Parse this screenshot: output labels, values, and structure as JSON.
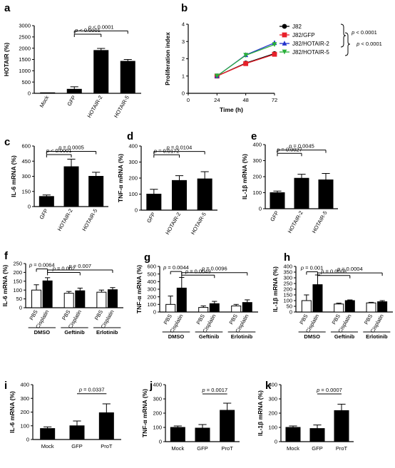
{
  "panels": [
    {
      "id": "a",
      "label": "a",
      "type": "bar",
      "ylabel": "HOTAIR (%)",
      "ylim": [
        0,
        3000
      ],
      "yticks": [
        0,
        500,
        1000,
        1500,
        2000,
        2500,
        3000
      ],
      "categories": [
        "Mock",
        "GFP",
        "HOTAIR-2",
        "HOTAIR-5"
      ],
      "values": [
        25,
        180,
        1900,
        1420
      ],
      "errors": [
        0,
        110,
        90,
        80
      ],
      "fills": [
        "#000",
        "#000",
        "#000",
        "#000"
      ],
      "brackets": [
        {
          "from": 1,
          "to": 3,
          "level": 0.96,
          "text": "p < 0.0001",
          "drop": true
        },
        {
          "from": 1,
          "to": 2,
          "level": 0.82,
          "text": "p < 0.0001",
          "drop": true
        }
      ]
    },
    {
      "id": "b",
      "label": "b",
      "type": "line",
      "ylabel": "Proliferation index",
      "xlabel": "Time (h)",
      "ylim": [
        0,
        4
      ],
      "yticks": [
        0,
        1,
        2,
        3,
        4
      ],
      "xlim": [
        0,
        72
      ],
      "xticks": [
        0,
        24,
        48,
        72
      ],
      "series": [
        {
          "name": "J82",
          "color": "#000000",
          "marker": "circle",
          "x": [
            24,
            48,
            72
          ],
          "y": [
            1.0,
            1.75,
            2.3
          ]
        },
        {
          "name": "J82/GFP",
          "color": "#e8202a",
          "marker": "square",
          "x": [
            24,
            48,
            72
          ],
          "y": [
            1.0,
            1.72,
            2.26
          ]
        },
        {
          "name": "J82/HOTAIR-2",
          "color": "#2233cc",
          "marker": "triangle-up",
          "x": [
            24,
            48,
            72
          ],
          "y": [
            1.0,
            2.22,
            2.92
          ]
        },
        {
          "name": "J82/HOTAIR-5",
          "color": "#2ab03a",
          "marker": "triangle-down",
          "x": [
            24,
            48,
            72
          ],
          "y": [
            1.0,
            2.2,
            2.82
          ]
        }
      ],
      "pvalues": [
        "p < 0.0001",
        "p < 0.0001"
      ]
    },
    {
      "id": "c",
      "label": "c",
      "type": "bar",
      "ylabel": "IL-6 mRNA (%)",
      "ylim": [
        0,
        600
      ],
      "yticks": [
        0,
        150,
        300,
        450,
        600
      ],
      "categories": [
        "GFP",
        "HOTAIR-2",
        "HOTAIR-5"
      ],
      "values": [
        100,
        395,
        300
      ],
      "errors": [
        15,
        75,
        40
      ],
      "fills": [
        "#000",
        "#000",
        "#000"
      ],
      "brackets": [
        {
          "from": 0,
          "to": 2,
          "level": 0.95,
          "text": "p = 0.0005",
          "drop": true
        },
        {
          "from": 0,
          "to": 1,
          "level": 0.8,
          "text": "p < 0.0001",
          "drop": true
        }
      ]
    },
    {
      "id": "d",
      "label": "d",
      "type": "bar",
      "ylabel": "TNF-α mRNA (%)",
      "ylim": [
        0,
        400
      ],
      "yticks": [
        0,
        100,
        200,
        300,
        400
      ],
      "categories": [
        "GFP",
        "HOTAIR-2",
        "HOTAIR-5"
      ],
      "values": [
        100,
        185,
        195
      ],
      "errors": [
        30,
        30,
        45
      ],
      "fills": [
        "#000",
        "#000",
        "#000"
      ],
      "brackets": [
        {
          "from": 0,
          "to": 2,
          "level": 0.95,
          "text": "p = 0.0104",
          "drop": true
        },
        {
          "from": 0,
          "to": 1,
          "level": 0.8,
          "text": "p = 0.0172",
          "drop": true
        }
      ]
    },
    {
      "id": "e",
      "label": "e",
      "type": "bar",
      "ylabel": "IL-1β mRNA (%)",
      "ylim": [
        0,
        400
      ],
      "yticks": [
        0,
        100,
        200,
        300,
        400
      ],
      "categories": [
        "GFP",
        "HOTAIR-2",
        "HOTAIR-5"
      ],
      "values": [
        100,
        190,
        180
      ],
      "errors": [
        10,
        25,
        40
      ],
      "fills": [
        "#000",
        "#000",
        "#000"
      ],
      "brackets": [
        {
          "from": 0,
          "to": 2,
          "level": 0.95,
          "text": "p = 0.0045",
          "drop": true
        },
        {
          "from": 0,
          "to": 1,
          "level": 0.8,
          "text": "p = 0.0027",
          "drop": true
        }
      ]
    },
    {
      "id": "f",
      "label": "f",
      "type": "bar",
      "ylabel": "IL-6 mRNA (%)",
      "ylim": [
        0,
        250
      ],
      "yticks": [
        0,
        50,
        100,
        150,
        200,
        250
      ],
      "categories": [
        "PBS",
        "Cisplatin",
        "PBS",
        "Cisplatin",
        "PBS",
        "Cisplatin"
      ],
      "groups": [
        "DMSO",
        "Geftinib",
        "Erlotinib"
      ],
      "values": [
        100,
        152,
        82,
        96,
        88,
        102
      ],
      "errors": [
        30,
        18,
        10,
        15,
        12,
        12
      ],
      "fills": [
        "#fff",
        "#000",
        "#fff",
        "#000",
        "#fff",
        "#000"
      ],
      "brackets": [
        {
          "from": 0,
          "to": 1,
          "level": 0.93,
          "text": "p = 0.0064",
          "drop": true
        },
        {
          "from": 1,
          "to": 5,
          "level": 0.86,
          "text": "p = 0.007",
          "drop": true
        },
        {
          "from": 1,
          "to": 3,
          "level": 0.7,
          "text": "p = 0.002",
          "drop": true
        }
      ]
    },
    {
      "id": "g",
      "label": "g",
      "type": "bar",
      "ylabel": "TNF-α mRNA (%)",
      "ylim": [
        0,
        600
      ],
      "yticks": [
        0,
        100,
        200,
        300,
        400,
        500,
        600
      ],
      "categories": [
        "PBS",
        "Cisplatin",
        "PBS",
        "Cisplatin",
        "PBS",
        "Cisplatin"
      ],
      "groups": [
        "DMSO",
        "Geftinib",
        "Erlotinib"
      ],
      "values": [
        100,
        315,
        60,
        110,
        80,
        125
      ],
      "errors": [
        110,
        140,
        20,
        30,
        20,
        35
      ],
      "fills": [
        "#fff",
        "#000",
        "#fff",
        "#000",
        "#fff",
        "#000"
      ],
      "brackets": [
        {
          "from": 0,
          "to": 1,
          "level": 0.95,
          "text": "p = 0.0044",
          "drop": true
        },
        {
          "from": 1,
          "to": 5,
          "level": 0.88,
          "text": "p = 0.0096",
          "drop": true
        },
        {
          "from": 1,
          "to": 3,
          "level": 0.72,
          "text": "p = 0.0049",
          "drop": true
        }
      ]
    },
    {
      "id": "h",
      "label": "h",
      "type": "bar",
      "ylabel": "IL-1β mRNA (%)",
      "ylim": [
        0,
        400
      ],
      "yticks": [
        0,
        50,
        100,
        150,
        200,
        250,
        300,
        350,
        400
      ],
      "categories": [
        "PBS",
        "Cisplatin",
        "PBS",
        "Cisplatin",
        "PBS",
        "Cisplatin"
      ],
      "groups": [
        "DMSO",
        "Geftinib",
        "Erlotinib"
      ],
      "values": [
        100,
        240,
        70,
        100,
        80,
        90
      ],
      "errors": [
        50,
        85,
        8,
        6,
        5,
        10
      ],
      "fills": [
        "#fff",
        "#000",
        "#fff",
        "#000",
        "#fff",
        "#000"
      ],
      "brackets": [
        {
          "from": 0,
          "to": 1,
          "level": 0.93,
          "text": "p = 0.001",
          "drop": true
        },
        {
          "from": 1,
          "to": 5,
          "level": 0.86,
          "text": "p = 0.0004",
          "drop": true
        },
        {
          "from": 1,
          "to": 3,
          "level": 0.7,
          "text": "p = 0.0008",
          "drop": true
        }
      ]
    },
    {
      "id": "i",
      "label": "i",
      "type": "bar",
      "ylabel": "IL-6 mRNA (%)",
      "ylim": [
        0,
        400
      ],
      "yticks": [
        0,
        100,
        200,
        300,
        400
      ],
      "categories": [
        "Mock",
        "GFP",
        "ProT"
      ],
      "values": [
        80,
        100,
        195
      ],
      "errors": [
        12,
        35,
        65
      ],
      "fills": [
        "#000",
        "#000",
        "#000"
      ],
      "brackets": [
        {
          "from": 1,
          "to": 2,
          "level": 0.75,
          "text": "p = 0.0337",
          "drop": false
        }
      ]
    },
    {
      "id": "j",
      "label": "j",
      "type": "bar",
      "ylabel": "TNF-α mRNA (%)",
      "ylim": [
        0,
        400
      ],
      "yticks": [
        0,
        100,
        200,
        300,
        400
      ],
      "categories": [
        "Mock",
        "GFP",
        "ProT"
      ],
      "values": [
        100,
        95,
        220
      ],
      "errors": [
        10,
        25,
        50
      ],
      "fills": [
        "#000",
        "#000",
        "#000"
      ],
      "brackets": [
        {
          "from": 1,
          "to": 2,
          "level": 0.75,
          "text": "p = 0.0017",
          "drop": false
        }
      ]
    },
    {
      "id": "k",
      "label": "k",
      "type": "bar",
      "ylabel": "IL-1β mRNA (%)",
      "ylim": [
        0,
        400
      ],
      "yticks": [
        0,
        100,
        200,
        300,
        400
      ],
      "categories": [
        "Mock",
        "GFP",
        "ProT"
      ],
      "values": [
        100,
        92,
        218
      ],
      "errors": [
        10,
        25,
        45
      ],
      "fills": [
        "#000",
        "#000",
        "#000"
      ],
      "brackets": [
        {
          "from": 1,
          "to": 2,
          "level": 0.75,
          "text": "p = 0.0007",
          "drop": false
        }
      ]
    }
  ]
}
